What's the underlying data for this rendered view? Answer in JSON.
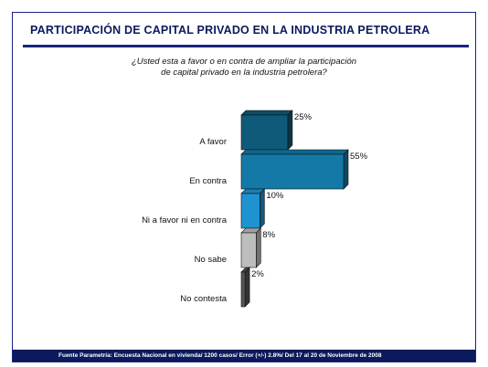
{
  "title": "PARTICIPACIÓN DE CAPITAL PRIVADO EN LA INDUSTRIA PETROLERA",
  "question": {
    "line1": "¿Usted esta a favor o en contra de ampliar la participación",
    "line2": "de capital privado en la industria petrolera?"
  },
  "footer": "Fuente Parametría: Encuesta Nacional en vivienda/ 1200 casos/ Error (+/-) 2.8%/ Del 17 al 20 de Noviembre de 2008",
  "chart_data": {
    "type": "bar",
    "orientation": "horizontal",
    "categories": [
      "A favor",
      "En contra",
      "Ni a favor ni en contra",
      "No sabe",
      "No contesta"
    ],
    "values": [
      25,
      55,
      10,
      8,
      2
    ],
    "value_labels": [
      "25%",
      "55%",
      "10%",
      "8%",
      "2%"
    ],
    "colors": [
      "#0f5a78",
      "#1479a6",
      "#1f93cf",
      "#bdbdbd",
      "#555555"
    ],
    "grid": false,
    "legend": "none"
  }
}
